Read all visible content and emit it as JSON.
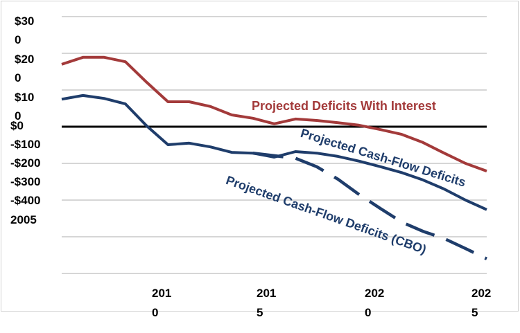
{
  "chart_data": {
    "type": "line",
    "title": "",
    "xlabel": "",
    "ylabel": "",
    "y_tick_labels": [
      "$30\n0",
      "$20\n0",
      "$10\n0",
      "$0",
      "-$100",
      "-$200",
      "-$300",
      "-$400",
      "2005"
    ],
    "x_tick_labels": [
      "2010",
      "2015",
      "2020",
      "2025"
    ],
    "xlim": [
      2005,
      2025
    ],
    "ylim": [
      -400,
      300
    ],
    "grid": "horizontal",
    "x": [
      2005,
      2006,
      2007,
      2008,
      2009,
      2010,
      2011,
      2012,
      2013,
      2014,
      2015,
      2016,
      2017,
      2018,
      2019,
      2020,
      2021,
      2022,
      2023,
      2024,
      2025
    ],
    "series": [
      {
        "name": "Projected Deficits With Interest",
        "color": "#a33a3a",
        "style": "solid",
        "values": [
          170,
          189,
          189,
          177,
          121,
          68,
          68,
          55,
          32,
          23,
          8,
          21,
          17,
          11,
          4,
          -8,
          -21,
          -43,
          -72,
          -100,
          -121
        ]
      },
      {
        "name": "Projected Cash-Flow Deficits",
        "color": "#1f3d6b",
        "style": "solid",
        "values": [
          75,
          85,
          77,
          62,
          2,
          -49,
          -45,
          -55,
          -70,
          -72,
          -83,
          -68,
          -72,
          -81,
          -94,
          -109,
          -125,
          -145,
          -170,
          -200,
          -226
        ]
      },
      {
        "name": "Projected Cash-Flow Deficits (CBO)",
        "color": "#1f3d6b",
        "style": "dashed",
        "values": [
          null,
          null,
          null,
          null,
          null,
          null,
          null,
          null,
          null,
          -72,
          -79,
          -86,
          -109,
          -143,
          -185,
          -223,
          -260,
          -285,
          -305,
          -332,
          -360
        ]
      }
    ],
    "zero_line_color": "#000000"
  }
}
